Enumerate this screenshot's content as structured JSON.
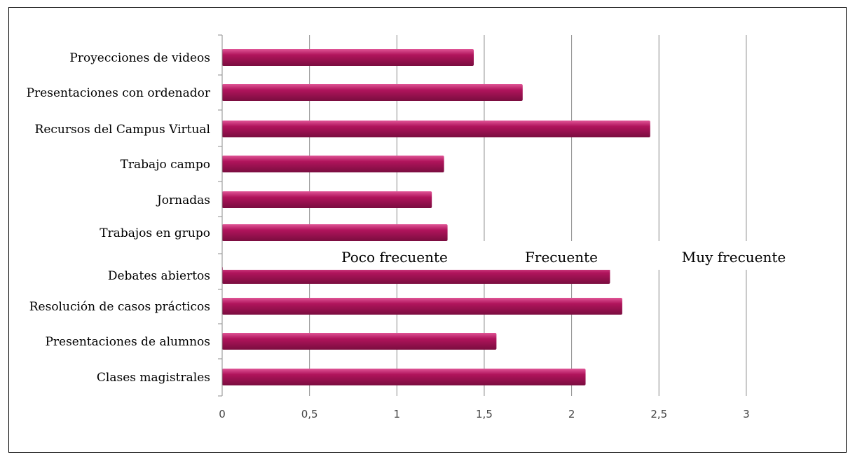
{
  "colors": {
    "bar": "#b0145c",
    "bar_light": "#e05596",
    "bar_dark": "#7a0d3f",
    "grid": "#8c8c8c",
    "axis": "#8c8c8c"
  },
  "chart_data": {
    "type": "bar",
    "orientation": "horizontal",
    "categories": [
      "Proyecciones de videos",
      "Presentaciones con ordenador",
      "Recursos del Campus Virtual",
      "Trabajo campo",
      "Jornadas",
      "Trabajos en grupo",
      "Debates abiertos",
      "Resolución de casos prácticos",
      "Presentaciones de alumnos",
      "Clases magistrales"
    ],
    "values": [
      1.44,
      1.72,
      2.45,
      1.27,
      1.2,
      1.29,
      2.22,
      2.29,
      1.57,
      2.08
    ],
    "xlim": [
      0,
      3
    ],
    "ticks": [
      "0",
      "0,5",
      "1",
      "1,5",
      "2",
      "2,5",
      "3"
    ],
    "tick_values": [
      0,
      0.5,
      1,
      1.5,
      2,
      2.5,
      3
    ],
    "annotations": [
      "Poco frecuente",
      "Frecuente",
      "Muy frecuente"
    ],
    "grid": true
  }
}
